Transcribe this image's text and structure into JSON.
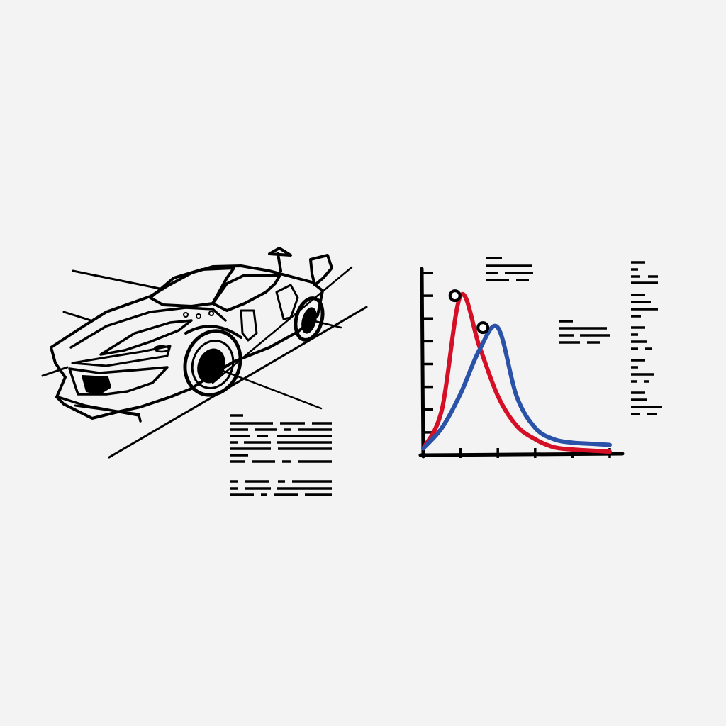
{
  "colors": {
    "background": "#f3f3f3",
    "ink": "#000000",
    "series_red": "#d50f25",
    "series_blue": "#2a52a8"
  },
  "illustration": {
    "subject": "sports-car-line-drawing",
    "icon": "car-icon"
  },
  "chart_data": {
    "type": "line",
    "title": "",
    "xlabel": "",
    "ylabel": "",
    "x": [
      0,
      0.5,
      1,
      1.5,
      2,
      2.5,
      3,
      3.5,
      4,
      4.5,
      5
    ],
    "xlim": [
      0,
      5
    ],
    "ylim": [
      0,
      8
    ],
    "x_ticks": 5,
    "y_ticks": 8,
    "grid": false,
    "legend": "none",
    "series": [
      {
        "color": "#d50f25",
        "values": [
          0.3,
          2.0,
          7.0,
          4.8,
          2.6,
          1.3,
          0.7,
          0.35,
          0.25,
          0.2,
          0.15
        ],
        "peak": {
          "x": 0.85,
          "y": 7.0
        }
      },
      {
        "color": "#2a52a8",
        "values": [
          0.3,
          1.2,
          2.7,
          4.6,
          5.6,
          2.6,
          1.2,
          0.7,
          0.55,
          0.5,
          0.45
        ],
        "peak": {
          "x": 1.6,
          "y": 5.6
        }
      }
    ]
  }
}
